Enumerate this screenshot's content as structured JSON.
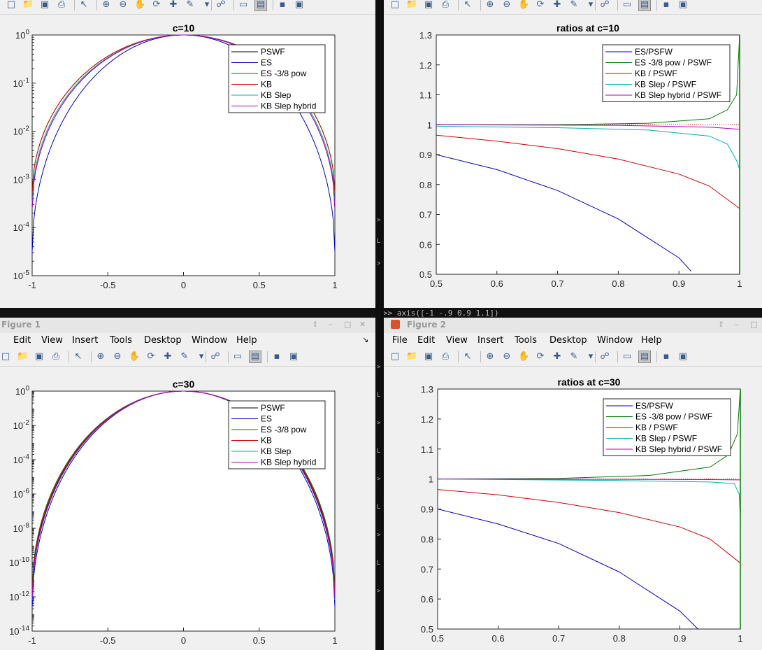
{
  "menus": [
    "File",
    "Edit",
    "View",
    "Insert",
    "Tools",
    "Desktop",
    "Window",
    "Help"
  ],
  "figure1_title": "Figure 1",
  "figure2_title": "Figure 2",
  "console_cmd": ">> axis([-1 -.9 0.9 1.1])",
  "colors": {
    "PSWF": "#000000",
    "ES": "#0000c8",
    "ES38": "#007a00",
    "KB": "#d00000",
    "KBSlep": "#00b0b0",
    "KBHybrid": "#b000b0"
  },
  "chart_data": [
    {
      "id": "c10",
      "type": "line",
      "title": "c=10",
      "xlim": [
        -1,
        1
      ],
      "ylim_log10": [
        -5,
        0
      ],
      "xticks": [
        "-1",
        "-0.5",
        "0",
        "0.5",
        "1"
      ],
      "yticks": [
        {
          "v": 0,
          "label": "10",
          "exp": "0"
        },
        {
          "v": -1,
          "label": "10",
          "exp": "-1"
        },
        {
          "v": -2,
          "label": "10",
          "exp": "-2"
        },
        {
          "v": -3,
          "label": "10",
          "exp": "-3"
        },
        {
          "v": -4,
          "label": "10",
          "exp": "-4"
        },
        {
          "v": -5,
          "label": "10",
          "exp": "-5"
        }
      ],
      "legend": [
        "PSWF",
        "ES",
        "ES -3/8 pow",
        "KB",
        "KB Slep",
        "KB Slep hybrid"
      ],
      "legend_position": "top-right",
      "series": [
        {
          "name": "PSWF",
          "key": "PSWF",
          "edge_log10": -3.6
        },
        {
          "name": "ES",
          "key": "ES",
          "edge_log10": -4.5
        },
        {
          "name": "ES -3/8 pow",
          "key": "ES38",
          "edge_log10": -3.3
        },
        {
          "name": "KB",
          "key": "KB",
          "edge_log10": -3.3
        },
        {
          "name": "KB Slep",
          "key": "KBSlep",
          "edge_log10": -3.5
        },
        {
          "name": "KB Slep hybrid",
          "key": "KBHybrid",
          "edge_log10": -3.6
        }
      ]
    },
    {
      "id": "r10",
      "type": "line",
      "title": "ratios at c=10",
      "xlim": [
        0.5,
        1
      ],
      "ylim": [
        0.5,
        1.3
      ],
      "xticks": [
        "0.5",
        "0.6",
        "0.7",
        "0.8",
        "0.9",
        "1"
      ],
      "yticks": [
        "0.5",
        "0.6",
        "0.7",
        "0.8",
        "0.9",
        "1",
        "1.1",
        "1.2",
        "1.3"
      ],
      "legend": [
        "ES/PSFW",
        "ES -3/8 pow / PSWF",
        "KB / PSWF",
        "KB Slep / PSWF",
        "KB Slep hybrid / PSWF"
      ],
      "legend_position": "top-right",
      "series": [
        {
          "name": "ES/PSFW",
          "key": "ES",
          "x": [
            0.5,
            0.6,
            0.7,
            0.8,
            0.9,
            0.92
          ],
          "y": [
            0.9,
            0.85,
            0.78,
            0.685,
            0.555,
            0.51
          ]
        },
        {
          "name": "ES -3/8 pow / PSWF",
          "key": "ES38",
          "x": [
            0.5,
            0.7,
            0.85,
            0.95,
            0.98,
            0.995,
            1
          ],
          "y": [
            1.0,
            1.0,
            1.005,
            1.02,
            1.05,
            1.1,
            1.3
          ]
        },
        {
          "name": "KB / PSWF",
          "key": "KB",
          "x": [
            0.5,
            0.6,
            0.7,
            0.8,
            0.9,
            0.95,
            1
          ],
          "y": [
            0.965,
            0.945,
            0.92,
            0.885,
            0.835,
            0.795,
            0.72
          ]
        },
        {
          "name": "KB Slep / PSWF",
          "key": "KBSlep",
          "x": [
            0.5,
            0.7,
            0.85,
            0.95,
            0.98,
            0.995,
            1
          ],
          "y": [
            0.995,
            0.99,
            0.982,
            0.962,
            0.935,
            0.88,
            0.85
          ]
        },
        {
          "name": "KB Slep hybrid / PSWF",
          "key": "KBHybrid",
          "x": [
            0.5,
            0.8,
            0.95,
            1
          ],
          "y": [
            1.0,
            0.998,
            0.992,
            0.985
          ]
        }
      ]
    },
    {
      "id": "c30",
      "type": "line",
      "title": "c=30",
      "xlim": [
        -1,
        1
      ],
      "ylim_log10": [
        -14,
        0
      ],
      "xticks": [
        "-1",
        "-0.5",
        "0",
        "0.5",
        "1"
      ],
      "yticks": [
        {
          "v": 0,
          "label": "10",
          "exp": "0"
        },
        {
          "v": -2,
          "label": "10",
          "exp": "-2"
        },
        {
          "v": -4,
          "label": "10",
          "exp": "-4"
        },
        {
          "v": -6,
          "label": "10",
          "exp": "-6"
        },
        {
          "v": -8,
          "label": "10",
          "exp": "-8"
        },
        {
          "v": -10,
          "label": "10",
          "exp": "-10"
        },
        {
          "v": -12,
          "label": "10",
          "exp": "-12"
        },
        {
          "v": -14,
          "label": "10",
          "exp": "-14"
        }
      ],
      "legend": [
        "PSWF",
        "ES",
        "ES -3/8 pow",
        "KB",
        "KB Slep",
        "KB Slep hybrid"
      ],
      "legend_position": "top-right",
      "series": [
        {
          "name": "PSWF",
          "key": "PSWF",
          "edge_log10": -12.0
        },
        {
          "name": "ES",
          "key": "ES",
          "edge_log10": -12.6
        },
        {
          "name": "ES -3/8 pow",
          "key": "ES38",
          "edge_log10": -11.6
        },
        {
          "name": "KB",
          "key": "KB",
          "edge_log10": -11.8
        },
        {
          "name": "KB Slep",
          "key": "KBSlep",
          "edge_log10": -12.2
        },
        {
          "name": "KB Slep hybrid",
          "key": "KBHybrid",
          "edge_log10": -12.1
        }
      ]
    },
    {
      "id": "r30",
      "type": "line",
      "title": "ratios at c=30",
      "xlim": [
        0.5,
        1
      ],
      "ylim": [
        0.5,
        1.3
      ],
      "xticks": [
        "0.5",
        "0.6",
        "0.7",
        "0.8",
        "0.9",
        "1"
      ],
      "yticks": [
        "0.5",
        "0.6",
        "0.7",
        "0.8",
        "0.9",
        "1",
        "1.1",
        "1.2",
        "1.3"
      ],
      "legend": [
        "ES/PSFW",
        "ES -3/8 pow / PSWF",
        "KB / PSWF",
        "KB Slep / PSWF",
        "KB Slep hybrid / PSWF"
      ],
      "legend_position": "top-right",
      "series": [
        {
          "name": "ES/PSFW",
          "key": "ES",
          "x": [
            0.5,
            0.6,
            0.7,
            0.8,
            0.9,
            0.93
          ],
          "y": [
            0.9,
            0.85,
            0.785,
            0.69,
            0.56,
            0.5
          ]
        },
        {
          "name": "ES -3/8 pow / PSWF",
          "key": "ES38",
          "x": [
            0.5,
            0.7,
            0.85,
            0.95,
            0.98,
            0.995,
            1
          ],
          "y": [
            1.0,
            1.002,
            1.012,
            1.04,
            1.08,
            1.15,
            1.3
          ]
        },
        {
          "name": "KB / PSWF",
          "key": "KB",
          "x": [
            0.5,
            0.6,
            0.7,
            0.8,
            0.9,
            0.95,
            1
          ],
          "y": [
            0.965,
            0.947,
            0.922,
            0.888,
            0.84,
            0.8,
            0.72
          ]
        },
        {
          "name": "KB Slep / PSWF",
          "key": "KBSlep",
          "x": [
            0.5,
            0.8,
            0.95,
            0.99,
            0.998,
            1
          ],
          "y": [
            1.0,
            0.995,
            0.99,
            0.985,
            0.95,
            0.87
          ]
        },
        {
          "name": "KB Slep hybrid / PSWF",
          "key": "KBHybrid",
          "x": [
            0.5,
            0.8,
            0.95,
            1
          ],
          "y": [
            1.0,
            0.999,
            0.998,
            0.997
          ]
        }
      ]
    }
  ]
}
